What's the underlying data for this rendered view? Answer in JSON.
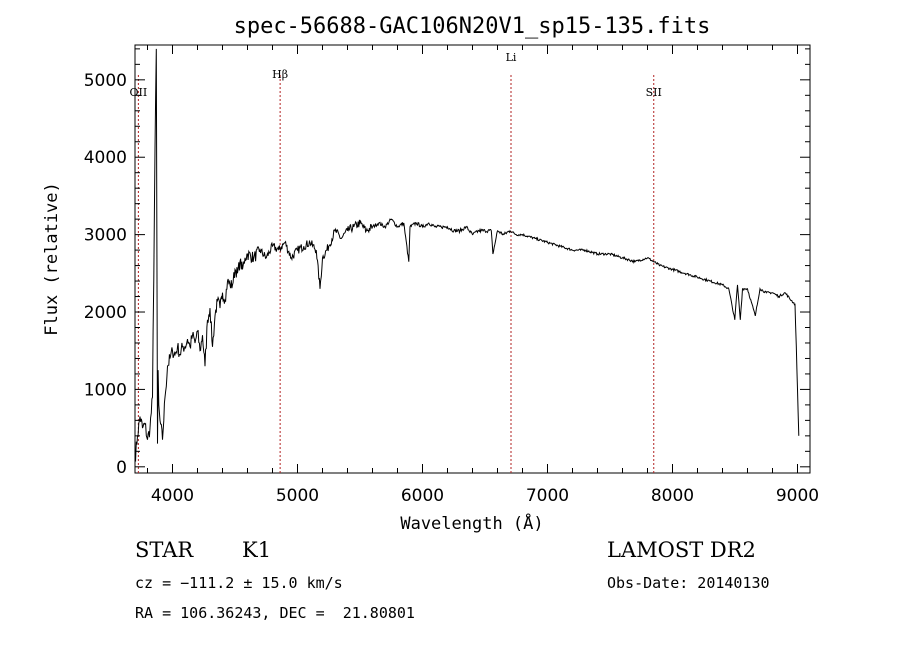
{
  "chart_data": {
    "type": "line",
    "title": "spec-56688-GAC106N20V1_sp15-135.fits",
    "xlabel": "Wavelength (Å)",
    "ylabel": "Flux (relative)",
    "xlim": [
      3700,
      9100
    ],
    "ylim": [
      -80,
      5450
    ],
    "xticks": [
      4000,
      5000,
      6000,
      7000,
      8000,
      9000
    ],
    "yticks": [
      0,
      1000,
      2000,
      3000,
      4000,
      5000
    ],
    "grid": false,
    "line_color": "#000000",
    "marker_color": "#b22222",
    "line_markers": [
      {
        "label": "OII",
        "x": 3727
      },
      {
        "label": "Hβ",
        "x": 4861
      },
      {
        "label": "Li",
        "x": 6708
      },
      {
        "label": "SII",
        "x": 7850
      }
    ],
    "series": [
      {
        "x": [
          3700,
          3720,
          3740,
          3760,
          3780,
          3800,
          3820,
          3840,
          3860,
          3870,
          3880,
          3885,
          3890,
          3900,
          3920,
          3940,
          3960,
          3980,
          4000,
          4020,
          4040,
          4060,
          4080,
          4100,
          4120,
          4140,
          4160,
          4180,
          4200,
          4220,
          4240,
          4260,
          4280,
          4300,
          4320,
          4340,
          4360,
          4380,
          4400,
          4420,
          4440,
          4460,
          4480,
          4500,
          4520,
          4540,
          4560,
          4580,
          4600,
          4650,
          4700,
          4750,
          4800,
          4850,
          4900,
          4950,
          5000,
          5050,
          5100,
          5150,
          5180,
          5200,
          5250,
          5300,
          5350,
          5400,
          5450,
          5500,
          5550,
          5600,
          5650,
          5700,
          5750,
          5800,
          5850,
          5890,
          5900,
          5950,
          6000,
          6050,
          6100,
          6150,
          6200,
          6250,
          6300,
          6350,
          6400,
          6450,
          6500,
          6550,
          6563,
          6600,
          6650,
          6700,
          6750,
          6800,
          6900,
          7000,
          7100,
          7200,
          7300,
          7400,
          7500,
          7600,
          7700,
          7800,
          7900,
          8000,
          8100,
          8200,
          8300,
          8400,
          8450,
          8498,
          8520,
          8542,
          8560,
          8600,
          8662,
          8700,
          8750,
          8800,
          8850,
          8900,
          8950,
          8980,
          9000,
          9010
        ],
        "y": [
          100,
          400,
          650,
          500,
          550,
          350,
          500,
          900,
          4100,
          5400,
          300,
          1250,
          800,
          600,
          350,
          900,
          1300,
          1400,
          1500,
          1450,
          1550,
          1450,
          1550,
          1550,
          1650,
          1550,
          1700,
          1600,
          1750,
          1500,
          1700,
          1300,
          1900,
          2050,
          1550,
          1950,
          2150,
          2050,
          2250,
          2150,
          2400,
          2350,
          2350,
          2550,
          2500,
          2650,
          2550,
          2700,
          2750,
          2700,
          2800,
          2700,
          2850,
          2800,
          2900,
          2700,
          2800,
          2850,
          2900,
          2800,
          2300,
          2700,
          2850,
          3050,
          2950,
          3050,
          3100,
          3150,
          3050,
          3100,
          3150,
          3100,
          3200,
          3100,
          3150,
          2650,
          3100,
          3150,
          3100,
          3150,
          3100,
          3100,
          3100,
          3050,
          3050,
          3100,
          3000,
          3050,
          3050,
          3050,
          2750,
          3050,
          3000,
          3050,
          3000,
          3000,
          2950,
          2900,
          2850,
          2800,
          2800,
          2750,
          2750,
          2700,
          2650,
          2700,
          2600,
          2550,
          2500,
          2450,
          2400,
          2350,
          2300,
          1900,
          2350,
          1900,
          2300,
          2300,
          1950,
          2300,
          2250,
          2250,
          2200,
          2250,
          2150,
          2100,
          1000,
          400
        ]
      }
    ]
  },
  "info": {
    "class_label": "STAR",
    "subclass_label": "K1",
    "cz_text": "cz = −111.2 ± 15.0 km/s",
    "radec_text": "RA = 106.36243, DEC =  21.80801",
    "survey": "LAMOST DR2",
    "obs_date": "Obs-Date: 20140130"
  }
}
